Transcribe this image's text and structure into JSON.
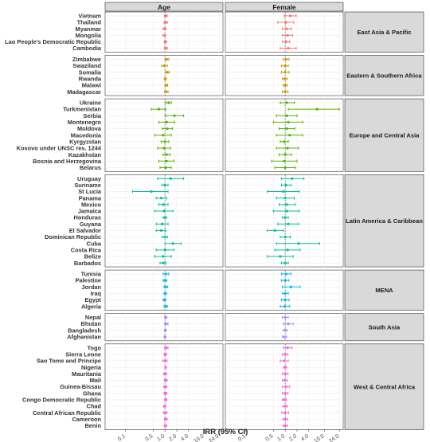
{
  "chart_data": {
    "type": "forest",
    "xlabel": "IRR (95% CI)",
    "x_scale": "log",
    "x_ticks": [
      "0.1",
      "0.5",
      "1.0",
      "2.0",
      "4.0",
      "10.0",
      "24.0"
    ],
    "x_tick_values": [
      0.1,
      0.5,
      1.0,
      2.0,
      4.0,
      10.0,
      24.0
    ],
    "xlim": [
      0.03,
      30
    ],
    "reference_line": 1.0,
    "grid": true,
    "columns": [
      "Age",
      "Female"
    ],
    "regions": [
      {
        "name": "East Asia & Pacific",
        "color": "#F8766D",
        "rows": [
          {
            "country": "Vietnam",
            "age": [
              1.05,
              0.97,
              1.14
            ],
            "female": [
              1.35,
              0.95,
              1.9
            ]
          },
          {
            "country": "Thailand",
            "age": [
              1.05,
              0.95,
              1.15
            ],
            "female": [
              1.05,
              0.65,
              1.65
            ]
          },
          {
            "country": "Myanmar",
            "age": [
              0.98,
              0.9,
              1.06
            ],
            "female": [
              1.1,
              0.85,
              1.45
            ]
          },
          {
            "country": "Mongolia",
            "age": [
              0.97,
              0.9,
              1.05
            ],
            "female": [
              1.15,
              0.85,
              1.55
            ]
          },
          {
            "country": "Lao People's Democratic Republic",
            "age": [
              1.02,
              0.96,
              1.1
            ],
            "female": [
              1.05,
              0.85,
              1.3
            ]
          },
          {
            "country": "Cambodia",
            "age": [
              1.05,
              0.97,
              1.15
            ],
            "female": [
              1.2,
              0.75,
              1.9
            ]
          }
        ]
      },
      {
        "name": "Eastern & Southern Africa",
        "color": "#C49A00",
        "rows": [
          {
            "country": "Zimbabwe",
            "age": [
              1.12,
              1.02,
              1.25
            ],
            "female": [
              1.05,
              0.9,
              1.25
            ]
          },
          {
            "country": "Swaziland",
            "age": [
              0.97,
              0.82,
              1.15
            ],
            "female": [
              1.0,
              0.8,
              1.2
            ]
          },
          {
            "country": "Somalia",
            "age": [
              1.15,
              1.05,
              1.28
            ],
            "female": [
              1.0,
              0.8,
              1.25
            ]
          },
          {
            "country": "Rwanda",
            "age": [
              1.02,
              0.96,
              1.08
            ],
            "female": [
              0.98,
              0.85,
              1.12
            ]
          },
          {
            "country": "Malawi",
            "age": [
              1.08,
              1.0,
              1.18
            ],
            "female": [
              1.0,
              0.9,
              1.12
            ]
          },
          {
            "country": "Madagascar",
            "age": [
              1.08,
              0.98,
              1.2
            ],
            "female": [
              1.0,
              0.85,
              1.18
            ]
          }
        ]
      },
      {
        "name": "Europe and Central Asia",
        "color": "#53B400",
        "rows": [
          {
            "country": "Ukraine",
            "age": [
              1.25,
              1.05,
              1.45
            ],
            "female": [
              1.1,
              0.75,
              1.7
            ]
          },
          {
            "country": "Turkmenistan",
            "age": [
              0.7,
              0.45,
              1.05
            ],
            "female": [
              6.5,
              1.2,
              24.0
            ]
          },
          {
            "country": "Serbia",
            "age": [
              1.75,
              1.05,
              3.0
            ],
            "female": [
              1.1,
              0.6,
              2.0
            ]
          },
          {
            "country": "Montenegro",
            "age": [
              1.1,
              0.7,
              1.75
            ],
            "female": [
              1.2,
              0.5,
              2.8
            ]
          },
          {
            "country": "Moldova",
            "age": [
              1.15,
              0.85,
              1.55
            ],
            "female": [
              1.1,
              0.7,
              1.75
            ]
          },
          {
            "country": "Macedonia",
            "age": [
              0.9,
              0.55,
              1.45
            ],
            "female": [
              1.3,
              0.6,
              2.8
            ]
          },
          {
            "country": "Kyrgyzstan",
            "age": [
              1.0,
              0.8,
              1.25
            ],
            "female": [
              0.95,
              0.75,
              1.2
            ]
          },
          {
            "country": "Kosovo under UNSC res. 1244",
            "age": [
              0.95,
              0.65,
              1.4
            ],
            "female": [
              1.15,
              0.6,
              2.2
            ]
          },
          {
            "country": "Kazakhstan",
            "age": [
              1.1,
              0.9,
              1.35
            ],
            "female": [
              1.0,
              0.7,
              1.45
            ]
          },
          {
            "country": "Bosnia and Herzegovina",
            "age": [
              1.1,
              0.7,
              1.7
            ],
            "female": [
              0.95,
              0.45,
              2.0
            ]
          },
          {
            "country": "Belarus",
            "age": [
              1.05,
              0.75,
              1.45
            ],
            "female": [
              1.0,
              0.55,
              1.8
            ]
          }
        ]
      },
      {
        "name": "Latin America & Caribbean",
        "color": "#00C094",
        "rows": [
          {
            "country": "Uruguay",
            "age": [
              1.4,
              0.65,
              3.0
            ],
            "female": [
              1.5,
              0.8,
              3.0
            ]
          },
          {
            "country": "Suriname",
            "age": [
              1.0,
              0.85,
              1.2
            ],
            "female": [
              1.05,
              0.8,
              1.4
            ]
          },
          {
            "country": "St Lucia",
            "age": [
              0.45,
              0.15,
              1.2
            ],
            "female": [
              0.9,
              0.35,
              2.3
            ]
          },
          {
            "country": "Panama",
            "age": [
              0.8,
              0.6,
              1.1
            ],
            "female": [
              1.0,
              0.6,
              1.7
            ]
          },
          {
            "country": "Mexico",
            "age": [
              0.9,
              0.7,
              1.2
            ],
            "female": [
              1.1,
              0.7,
              1.8
            ]
          },
          {
            "country": "Jamaica",
            "age": [
              0.95,
              0.55,
              1.6
            ],
            "female": [
              1.1,
              0.5,
              2.3
            ]
          },
          {
            "country": "Honduras",
            "age": [
              1.0,
              0.9,
              1.1
            ],
            "female": [
              1.0,
              0.85,
              1.2
            ]
          },
          {
            "country": "Guyana",
            "age": [
              0.85,
              0.6,
              1.2
            ],
            "female": [
              1.2,
              0.65,
              2.2
            ]
          },
          {
            "country": "El Salvador",
            "age": [
              0.8,
              0.6,
              1.05
            ],
            "female": [
              0.55,
              0.35,
              0.9
            ]
          },
          {
            "country": "Dominican Republic",
            "age": [
              1.0,
              0.85,
              1.15
            ],
            "female": [
              1.0,
              0.75,
              1.35
            ]
          },
          {
            "country": "Cuba",
            "age": [
              1.6,
              1.0,
              2.6
            ],
            "female": [
              2.2,
              0.6,
              7.5
            ]
          },
          {
            "country": "Costa Rica",
            "age": [
              1.0,
              0.6,
              1.7
            ],
            "female": [
              1.15,
              0.55,
              2.4
            ]
          },
          {
            "country": "Belize",
            "age": [
              0.9,
              0.55,
              1.45
            ],
            "female": [
              0.75,
              0.35,
              1.6
            ]
          },
          {
            "country": "Barbados",
            "age": [
              0.9,
              0.75,
              1.05
            ],
            "female": [
              1.0,
              0.8,
              1.2
            ]
          }
        ]
      },
      {
        "name": "MENA",
        "color": "#00B6EB",
        "rows": [
          {
            "country": "Tunisia",
            "age": [
              1.05,
              0.9,
              1.25
            ],
            "female": [
              1.05,
              0.8,
              1.4
            ]
          },
          {
            "country": "Palestine",
            "age": [
              1.0,
              0.9,
              1.12
            ],
            "female": [
              1.0,
              0.8,
              1.25
            ]
          },
          {
            "country": "Jordan",
            "age": [
              1.05,
              0.95,
              1.18
            ],
            "female": [
              1.4,
              0.85,
              2.4
            ]
          },
          {
            "country": "Iraq",
            "age": [
              1.02,
              0.95,
              1.1
            ],
            "female": [
              1.0,
              0.85,
              1.2
            ]
          },
          {
            "country": "Egypt",
            "age": [
              0.97,
              0.9,
              1.05
            ],
            "female": [
              1.0,
              0.8,
              1.25
            ]
          },
          {
            "country": "Algeria",
            "age": [
              1.05,
              0.95,
              1.15
            ],
            "female": [
              0.98,
              0.75,
              1.3
            ]
          }
        ]
      },
      {
        "name": "South Asia",
        "color": "#A58AFF",
        "rows": [
          {
            "country": "Nepal",
            "age": [
              1.05,
              0.98,
              1.12
            ],
            "female": [
              1.0,
              0.85,
              1.2
            ]
          },
          {
            "country": "Bhutan",
            "age": [
              1.08,
              0.98,
              1.2
            ],
            "female": [
              1.2,
              0.9,
              1.6
            ]
          },
          {
            "country": "Bangladesh",
            "age": [
              1.02,
              0.97,
              1.08
            ],
            "female": [
              1.0,
              0.9,
              1.12
            ]
          },
          {
            "country": "Afghanistan",
            "age": [
              1.0,
              0.95,
              1.06
            ],
            "female": [
              0.95,
              0.85,
              1.08
            ]
          }
        ]
      },
      {
        "name": "West & Central Africa",
        "color": "#FB61D7",
        "rows": [
          {
            "country": "Togo",
            "age": [
              1.08,
              0.98,
              1.2
            ],
            "female": [
              1.15,
              0.9,
              1.5
            ]
          },
          {
            "country": "Sierra Leone",
            "age": [
              1.02,
              0.95,
              1.1
            ],
            "female": [
              1.0,
              0.85,
              1.18
            ]
          },
          {
            "country": "Sao Tome and Principe",
            "age": [
              1.0,
              0.88,
              1.14
            ],
            "female": [
              0.95,
              0.75,
              1.2
            ]
          },
          {
            "country": "Nigeria",
            "age": [
              1.04,
              1.0,
              1.08
            ],
            "female": [
              1.0,
              0.92,
              1.08
            ]
          },
          {
            "country": "Mauritania",
            "age": [
              1.0,
              0.92,
              1.1
            ],
            "female": [
              1.0,
              0.85,
              1.18
            ]
          },
          {
            "country": "Mali",
            "age": [
              1.05,
              0.97,
              1.14
            ],
            "female": [
              0.98,
              0.85,
              1.14
            ]
          },
          {
            "country": "Guinea-Bissau",
            "age": [
              1.02,
              0.93,
              1.12
            ],
            "female": [
              1.05,
              0.85,
              1.3
            ]
          },
          {
            "country": "Ghana",
            "age": [
              1.03,
              0.95,
              1.12
            ],
            "female": [
              1.0,
              0.85,
              1.18
            ]
          },
          {
            "country": "Congo Democratic Republic",
            "age": [
              1.05,
              0.98,
              1.12
            ],
            "female": [
              0.95,
              0.85,
              1.07
            ]
          },
          {
            "country": "Chad",
            "age": [
              0.98,
              0.92,
              1.05
            ],
            "female": [
              1.0,
              0.88,
              1.14
            ]
          },
          {
            "country": "Central African Republic",
            "age": [
              1.02,
              0.92,
              1.13
            ],
            "female": [
              1.0,
              0.82,
              1.22
            ]
          },
          {
            "country": "Cameroon",
            "age": [
              1.05,
              0.97,
              1.14
            ],
            "female": [
              1.0,
              0.87,
              1.16
            ]
          },
          {
            "country": "Benin",
            "age": [
              1.03,
              0.96,
              1.1
            ],
            "female": [
              1.0,
              0.88,
              1.13
            ]
          }
        ]
      }
    ]
  }
}
